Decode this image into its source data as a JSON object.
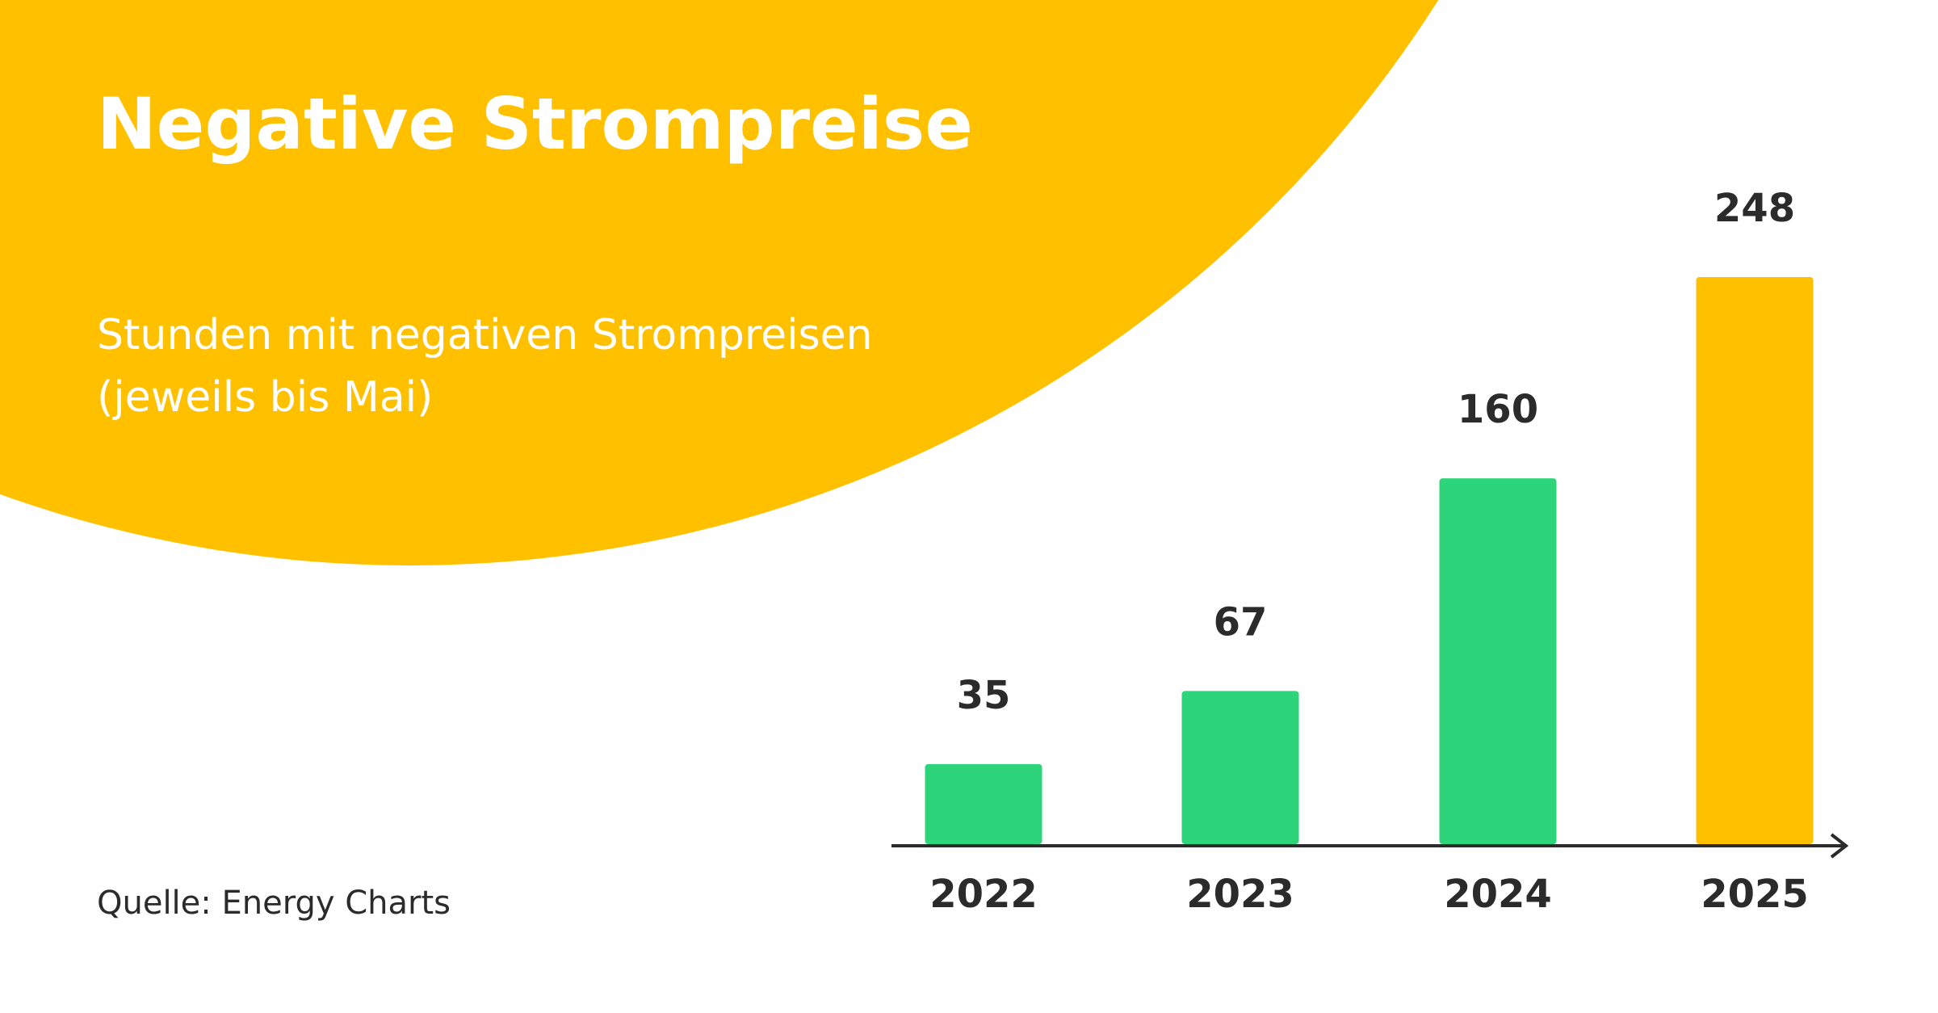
{
  "chart_data": {
    "type": "bar",
    "title": "Negative Strompreise",
    "subtitle": [
      "Stunden mit negativen Strompreisen",
      "(jeweils bis Mai)"
    ],
    "source": "Quelle: Energy Charts",
    "categories": [
      "2022",
      "2023",
      "2024",
      "2025"
    ],
    "values": [
      35,
      67,
      160,
      248
    ],
    "colors": [
      "#2ed47a",
      "#2ed47a",
      "#2ed47a",
      "#ffc000"
    ]
  }
}
